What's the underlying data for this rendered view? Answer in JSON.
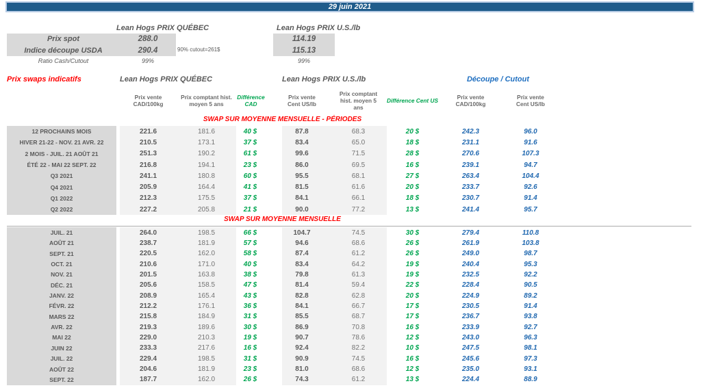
{
  "banner": {
    "date": "29 juin 2021"
  },
  "spot_section": {
    "quebec_title": "Lean Hogs PRIX QUÉBEC",
    "us_title": "Lean Hogs PRIX U.S./lb",
    "rows": [
      {
        "label": "Prix spot",
        "quebec": "288.0",
        "us": "114.19"
      },
      {
        "label": "Indice découpe USDA",
        "quebec": "290.4",
        "us": "115.13"
      },
      {
        "label": "Ratio Cash/Cutout",
        "quebec": "99%",
        "us": "99%"
      }
    ],
    "cutout_note": "90% cutout=261$"
  },
  "swaps_table": {
    "title": "Prix swaps indicatifs",
    "quebec_group_title": "Lean Hogs PRIX QUÉBEC",
    "us_group_title": "Lean Hogs PRIX U.S./lb",
    "cutout_group_title": "Découpe / Cutout",
    "column_headers": {
      "qc_sell": "Prix vente CAD/100kg",
      "qc_hist": "Prix comptant hist. moyen 5 ans",
      "qc_diff": "Différence CAD",
      "us_sell": "Prix vente Cent US/lb",
      "us_hist": "Prix comptant hist. moyen 5 ans",
      "us_diff": "Différence Cent US",
      "cut_cad": "Prix vente CAD/100kg",
      "cut_us": "Prix vente Cent US/lb"
    },
    "sections": [
      {
        "title": "SWAP SUR MOYENNE MENSUELLE - PÉRIODES",
        "rows": [
          [
            "12 PROCHAINS MOIS",
            "221.6",
            "181.6",
            "40 $",
            "87.8",
            "68.3",
            "20 $",
            "242.3",
            "96.0"
          ],
          [
            "HIVER 21-22 - NOV. 21 AVR. 22",
            "210.5",
            "173.1",
            "37 $",
            "83.4",
            "65.0",
            "18 $",
            "231.1",
            "91.6"
          ],
          [
            "2 MOIS - JUIL. 21 AOÛT 21",
            "251.3",
            "190.2",
            "61 $",
            "99.6",
            "71.5",
            "28 $",
            "270.6",
            "107.3"
          ],
          [
            "ÉTÉ 22 - MAI 22 SEPT. 22",
            "216.8",
            "194.1",
            "23 $",
            "86.0",
            "69.5",
            "16 $",
            "239.1",
            "94.7"
          ],
          [
            "Q3 2021",
            "241.1",
            "180.8",
            "60 $",
            "95.5",
            "68.1",
            "27 $",
            "263.4",
            "104.4"
          ],
          [
            "Q4 2021",
            "205.9",
            "164.4",
            "41 $",
            "81.5",
            "61.6",
            "20 $",
            "233.7",
            "92.6"
          ],
          [
            "Q1 2022",
            "212.3",
            "175.5",
            "37 $",
            "84.1",
            "66.1",
            "18 $",
            "230.7",
            "91.4"
          ],
          [
            "Q2 2022",
            "227.2",
            "205.8",
            "21 $",
            "90.0",
            "77.2",
            "13 $",
            "241.4",
            "95.7"
          ]
        ]
      },
      {
        "title": "SWAP SUR MOYENNE MENSUELLE",
        "rows": [
          [
            "JUIL. 21",
            "264.0",
            "198.5",
            "66 $",
            "104.7",
            "74.5",
            "30 $",
            "279.4",
            "110.8"
          ],
          [
            "AOÛT 21",
            "238.7",
            "181.9",
            "57 $",
            "94.6",
            "68.6",
            "26 $",
            "261.9",
            "103.8"
          ],
          [
            "SEPT. 21",
            "220.5",
            "162.0",
            "58 $",
            "87.4",
            "61.2",
            "26 $",
            "249.0",
            "98.7"
          ],
          [
            "OCT. 21",
            "210.6",
            "171.0",
            "40 $",
            "83.4",
            "64.2",
            "19 $",
            "240.4",
            "95.3"
          ],
          [
            "NOV. 21",
            "201.5",
            "163.8",
            "38 $",
            "79.8",
            "61.3",
            "19 $",
            "232.5",
            "92.2"
          ],
          [
            "DÉC. 21",
            "205.6",
            "158.5",
            "47 $",
            "81.4",
            "59.4",
            "22 $",
            "228.4",
            "90.5"
          ],
          [
            "JANV. 22",
            "208.9",
            "165.4",
            "43 $",
            "82.8",
            "62.8",
            "20 $",
            "224.9",
            "89.2"
          ],
          [
            "FÉVR. 22",
            "212.2",
            "176.1",
            "36 $",
            "84.1",
            "66.7",
            "17 $",
            "230.5",
            "91.4"
          ],
          [
            "MARS 22",
            "215.8",
            "184.9",
            "31 $",
            "85.5",
            "68.7",
            "17 $",
            "236.7",
            "93.8"
          ],
          [
            "AVR. 22",
            "219.3",
            "189.6",
            "30 $",
            "86.9",
            "70.8",
            "16 $",
            "233.9",
            "92.7"
          ],
          [
            "MAI 22",
            "229.0",
            "210.3",
            "19 $",
            "90.7",
            "78.6",
            "12 $",
            "243.0",
            "96.3"
          ],
          [
            "JUIN 22",
            "233.3",
            "217.6",
            "16 $",
            "92.4",
            "82.2",
            "10 $",
            "247.5",
            "98.1"
          ],
          [
            "JUIL. 22",
            "229.4",
            "198.5",
            "31 $",
            "90.9",
            "74.5",
            "16 $",
            "245.6",
            "97.3"
          ],
          [
            "AOÛT 22",
            "204.6",
            "181.9",
            "23 $",
            "81.0",
            "68.6",
            "12 $",
            "235.0",
            "93.1"
          ],
          [
            "SEPT. 22",
            "187.7",
            "162.0",
            "26 $",
            "74.3",
            "61.2",
            "13 $",
            "224.4",
            "88.9"
          ]
        ]
      }
    ]
  },
  "colors": {
    "banner_bg": "#1F5C8B",
    "banner_border": "#B7CBE4",
    "label_column_bg": "#D9D9D9",
    "band_bg": "#F2F2F2",
    "text_gray": "#595959",
    "accent_red": "#FF0000",
    "accent_green": "#00A550",
    "accent_blue": "#2068B0",
    "cutout_title_blue": "#1F6FC0"
  }
}
